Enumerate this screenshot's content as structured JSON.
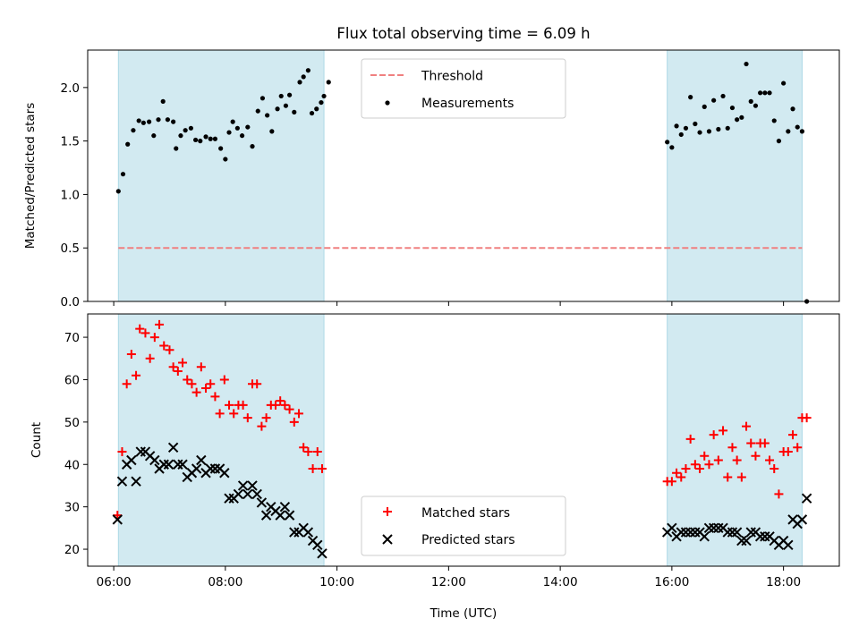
{
  "figure": {
    "title": "Flux total observing time = 6.09 h",
    "xlabel": "Time (UTC)",
    "xticks": [
      {
        "h": 6,
        "label": "06:00"
      },
      {
        "h": 8,
        "label": "08:00"
      },
      {
        "h": 10,
        "label": "10:00"
      },
      {
        "h": 12,
        "label": "12:00"
      },
      {
        "h": 14,
        "label": "14:00"
      },
      {
        "h": 16,
        "label": "16:00"
      },
      {
        "h": 18,
        "label": "18:00"
      }
    ],
    "xlim": [
      "05:32",
      "19:00"
    ],
    "shaded_intervals": [
      [
        "06:05",
        "09:46"
      ],
      [
        "15:55",
        "18:20"
      ]
    ],
    "shade_color": "#add8e6"
  },
  "chart_data": [
    {
      "type": "scatter",
      "panel": "top",
      "ylabel": "Matched/Predicted stars",
      "ylim": [
        0,
        2.35
      ],
      "yticks": [
        0.0,
        0.5,
        1.0,
        1.5,
        2.0
      ],
      "ytick_labels": [
        "0.0",
        "0.5",
        "1.0",
        "1.5",
        "2.0"
      ],
      "grid": false,
      "legend_position": "top-center",
      "threshold": {
        "name": "Threshold",
        "value": 0.5,
        "x_range": [
          "06:05",
          "18:20"
        ],
        "color": "#f08080"
      },
      "series": [
        {
          "name": "Measurements",
          "color": "#000000",
          "marker": "dot",
          "points": [
            [
              "06:05",
              1.03
            ],
            [
              "06:10",
              1.19
            ],
            [
              "06:15",
              1.47
            ],
            [
              "06:21",
              1.6
            ],
            [
              "06:27",
              1.69
            ],
            [
              "06:32",
              1.67
            ],
            [
              "06:38",
              1.68
            ],
            [
              "06:43",
              1.55
            ],
            [
              "06:48",
              1.7
            ],
            [
              "06:53",
              1.87
            ],
            [
              "06:58",
              1.7
            ],
            [
              "07:04",
              1.68
            ],
            [
              "07:07",
              1.43
            ],
            [
              "07:12",
              1.55
            ],
            [
              "07:17",
              1.6
            ],
            [
              "07:23",
              1.62
            ],
            [
              "07:28",
              1.51
            ],
            [
              "07:33",
              1.5
            ],
            [
              "07:39",
              1.54
            ],
            [
              "07:44",
              1.52
            ],
            [
              "07:49",
              1.52
            ],
            [
              "07:55",
              1.43
            ],
            [
              "08:00",
              1.33
            ],
            [
              "08:04",
              1.58
            ],
            [
              "08:08",
              1.68
            ],
            [
              "08:13",
              1.62
            ],
            [
              "08:18",
              1.55
            ],
            [
              "08:24",
              1.63
            ],
            [
              "08:29",
              1.45
            ],
            [
              "08:35",
              1.78
            ],
            [
              "08:40",
              1.9
            ],
            [
              "08:45",
              1.74
            ],
            [
              "08:50",
              1.59
            ],
            [
              "08:56",
              1.8
            ],
            [
              "09:00",
              1.92
            ],
            [
              "09:05",
              1.83
            ],
            [
              "09:09",
              1.93
            ],
            [
              "09:14",
              1.77
            ],
            [
              "09:20",
              2.05
            ],
            [
              "09:24",
              2.1
            ],
            [
              "09:29",
              2.16
            ],
            [
              "09:33",
              1.76
            ],
            [
              "09:38",
              1.8
            ],
            [
              "09:43",
              1.86
            ],
            [
              "09:46",
              1.92
            ],
            [
              "09:51",
              2.05
            ],
            [
              "15:55",
              1.49
            ],
            [
              "16:00",
              1.44
            ],
            [
              "16:05",
              1.64
            ],
            [
              "16:10",
              1.56
            ],
            [
              "16:15",
              1.62
            ],
            [
              "16:20",
              1.91
            ],
            [
              "16:25",
              1.66
            ],
            [
              "16:30",
              1.58
            ],
            [
              "16:35",
              1.82
            ],
            [
              "16:40",
              1.59
            ],
            [
              "16:45",
              1.88
            ],
            [
              "16:50",
              1.61
            ],
            [
              "16:55",
              1.92
            ],
            [
              "17:00",
              1.62
            ],
            [
              "17:05",
              1.81
            ],
            [
              "17:10",
              1.7
            ],
            [
              "17:15",
              1.72
            ],
            [
              "17:20",
              2.22
            ],
            [
              "17:25",
              1.87
            ],
            [
              "17:30",
              1.83
            ],
            [
              "17:35",
              1.95
            ],
            [
              "17:40",
              1.95
            ],
            [
              "17:45",
              1.95
            ],
            [
              "17:50",
              1.69
            ],
            [
              "17:55",
              1.5
            ],
            [
              "18:00",
              2.04
            ],
            [
              "18:05",
              1.59
            ],
            [
              "18:10",
              1.8
            ],
            [
              "18:15",
              1.63
            ],
            [
              "18:20",
              1.59
            ],
            [
              "18:25",
              0.0
            ]
          ]
        }
      ]
    },
    {
      "type": "scatter",
      "panel": "bottom",
      "ylabel": "Count",
      "ylim": [
        16,
        75.5
      ],
      "yticks": [
        20,
        30,
        40,
        50,
        60,
        70
      ],
      "ytick_labels": [
        "20",
        "30",
        "40",
        "50",
        "60",
        "70"
      ],
      "grid": false,
      "legend_position": "bottom-center",
      "series": [
        {
          "name": "Matched stars",
          "color": "#ff0000",
          "marker": "plus",
          "points": [
            [
              "06:04",
              28
            ],
            [
              "06:09",
              43
            ],
            [
              "06:14",
              59
            ],
            [
              "06:19",
              66
            ],
            [
              "06:24",
              61
            ],
            [
              "06:28",
              72
            ],
            [
              "06:34",
              71
            ],
            [
              "06:39",
              65
            ],
            [
              "06:44",
              70
            ],
            [
              "06:49",
              73
            ],
            [
              "06:54",
              68
            ],
            [
              "07:00",
              67
            ],
            [
              "07:04",
              63
            ],
            [
              "07:09",
              62
            ],
            [
              "07:14",
              64
            ],
            [
              "07:19",
              60
            ],
            [
              "07:24",
              59
            ],
            [
              "07:29",
              57
            ],
            [
              "07:34",
              63
            ],
            [
              "07:39",
              58
            ],
            [
              "07:44",
              59
            ],
            [
              "07:49",
              56
            ],
            [
              "07:54",
              52
            ],
            [
              "07:59",
              60
            ],
            [
              "08:04",
              54
            ],
            [
              "08:09",
              52
            ],
            [
              "08:14",
              54
            ],
            [
              "08:19",
              54
            ],
            [
              "08:24",
              51
            ],
            [
              "08:29",
              59
            ],
            [
              "08:34",
              59
            ],
            [
              "08:39",
              49
            ],
            [
              "08:44",
              51
            ],
            [
              "08:49",
              54
            ],
            [
              "08:54",
              54
            ],
            [
              "08:59",
              55
            ],
            [
              "09:04",
              54
            ],
            [
              "09:09",
              53
            ],
            [
              "09:14",
              50
            ],
            [
              "09:19",
              52
            ],
            [
              "09:24",
              44
            ],
            [
              "09:29",
              43
            ],
            [
              "09:34",
              39
            ],
            [
              "09:39",
              43
            ],
            [
              "09:44",
              39
            ],
            [
              "15:55",
              36
            ],
            [
              "16:00",
              36
            ],
            [
              "16:05",
              38
            ],
            [
              "16:10",
              37
            ],
            [
              "16:15",
              39
            ],
            [
              "16:20",
              46
            ],
            [
              "16:25",
              40
            ],
            [
              "16:30",
              39
            ],
            [
              "16:35",
              42
            ],
            [
              "16:40",
              40
            ],
            [
              "16:45",
              47
            ],
            [
              "16:50",
              41
            ],
            [
              "16:55",
              48
            ],
            [
              "17:00",
              37
            ],
            [
              "17:05",
              44
            ],
            [
              "17:10",
              41
            ],
            [
              "17:15",
              37
            ],
            [
              "17:20",
              49
            ],
            [
              "17:25",
              45
            ],
            [
              "17:30",
              42
            ],
            [
              "17:35",
              45
            ],
            [
              "17:40",
              45
            ],
            [
              "17:45",
              41
            ],
            [
              "17:50",
              39
            ],
            [
              "17:55",
              33
            ],
            [
              "18:00",
              43
            ],
            [
              "18:05",
              43
            ],
            [
              "18:10",
              47
            ],
            [
              "18:15",
              44
            ],
            [
              "18:20",
              51
            ],
            [
              "18:25",
              51
            ]
          ]
        },
        {
          "name": "Predicted stars",
          "color": "#000000",
          "marker": "x",
          "points": [
            [
              "06:04",
              27
            ],
            [
              "06:09",
              36
            ],
            [
              "06:14",
              40
            ],
            [
              "06:19",
              41
            ],
            [
              "06:24",
              36
            ],
            [
              "06:29",
              43
            ],
            [
              "06:34",
              43
            ],
            [
              "06:39",
              42
            ],
            [
              "06:44",
              41
            ],
            [
              "06:49",
              39
            ],
            [
              "06:54",
              40
            ],
            [
              "06:59",
              40
            ],
            [
              "07:04",
              44
            ],
            [
              "07:09",
              40
            ],
            [
              "07:14",
              40
            ],
            [
              "07:19",
              37
            ],
            [
              "07:24",
              38
            ],
            [
              "07:29",
              39
            ],
            [
              "07:34",
              41
            ],
            [
              "07:39",
              38
            ],
            [
              "07:44",
              39
            ],
            [
              "07:49",
              39
            ],
            [
              "07:54",
              39
            ],
            [
              "07:59",
              38
            ],
            [
              "08:04",
              32
            ],
            [
              "08:09",
              32
            ],
            [
              "08:14",
              33
            ],
            [
              "08:19",
              35
            ],
            [
              "08:24",
              33
            ],
            [
              "08:29",
              35
            ],
            [
              "08:34",
              33
            ],
            [
              "08:39",
              31
            ],
            [
              "08:44",
              28
            ],
            [
              "08:49",
              30
            ],
            [
              "08:54",
              29
            ],
            [
              "08:59",
              28
            ],
            [
              "09:04",
              30
            ],
            [
              "09:09",
              28
            ],
            [
              "09:14",
              24
            ],
            [
              "09:19",
              24
            ],
            [
              "09:24",
              25
            ],
            [
              "09:29",
              24
            ],
            [
              "09:34",
              22
            ],
            [
              "09:39",
              21
            ],
            [
              "09:44",
              19
            ],
            [
              "15:55",
              24
            ],
            [
              "16:00",
              25
            ],
            [
              "16:05",
              23
            ],
            [
              "16:10",
              24
            ],
            [
              "16:15",
              24
            ],
            [
              "16:20",
              24
            ],
            [
              "16:25",
              24
            ],
            [
              "16:30",
              24
            ],
            [
              "16:35",
              23
            ],
            [
              "16:40",
              25
            ],
            [
              "16:45",
              25
            ],
            [
              "16:50",
              25
            ],
            [
              "16:55",
              25
            ],
            [
              "17:00",
              24
            ],
            [
              "17:05",
              24
            ],
            [
              "17:10",
              24
            ],
            [
              "17:15",
              22
            ],
            [
              "17:20",
              22
            ],
            [
              "17:25",
              24
            ],
            [
              "17:30",
              24
            ],
            [
              "17:35",
              23
            ],
            [
              "17:40",
              23
            ],
            [
              "17:45",
              23
            ],
            [
              "17:50",
              22
            ],
            [
              "17:55",
              21
            ],
            [
              "18:00",
              22
            ],
            [
              "18:05",
              21
            ],
            [
              "18:10",
              27
            ],
            [
              "18:15",
              26
            ],
            [
              "18:20",
              27
            ],
            [
              "18:25",
              32
            ]
          ]
        }
      ]
    }
  ]
}
